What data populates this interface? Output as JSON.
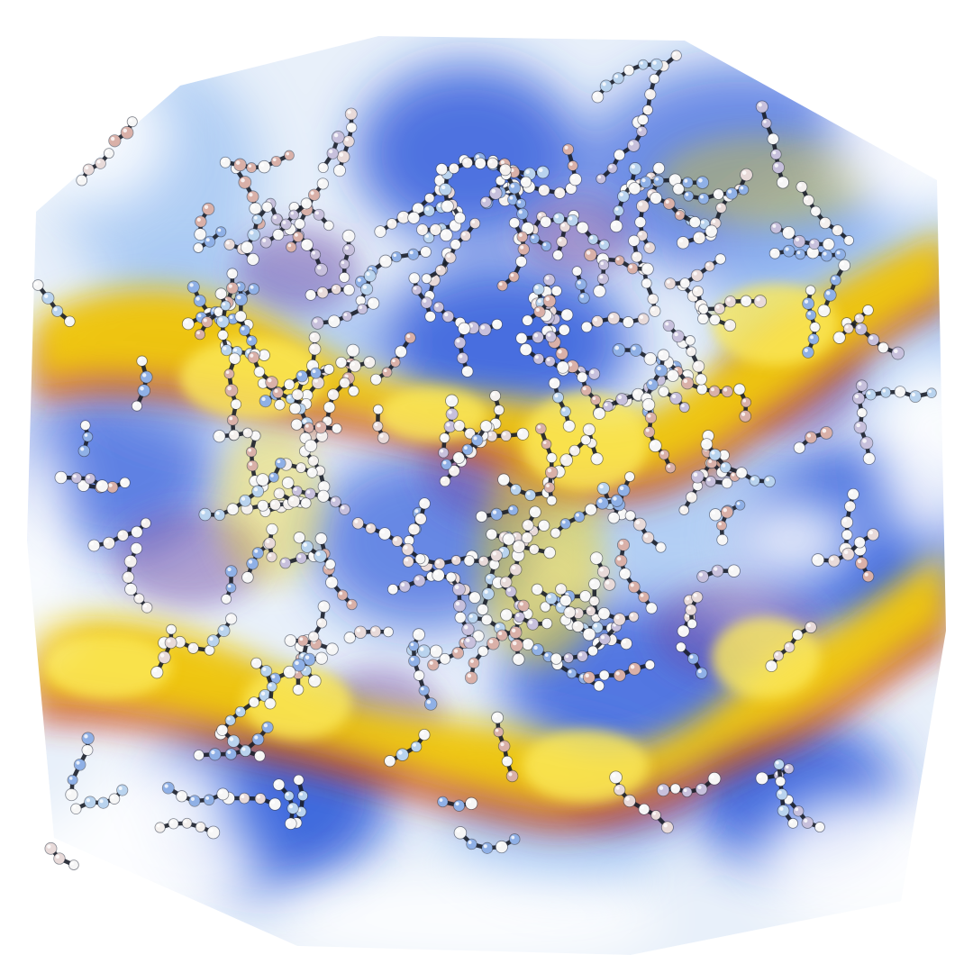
{
  "scene": {
    "subject": "molecular-simulation-volume-render",
    "background_color": "#ffffff",
    "volume_colors": {
      "blue": "#1f4fd8",
      "light_blue": "#8fb8f0",
      "purple": "#6a3fa0",
      "red": "#c8351f",
      "orange": "#e07a14",
      "yellow": "#f2d20a",
      "white_haze": "#eef4fb"
    },
    "bond_color": "#1a1f2a",
    "atom_colors": [
      "#f4f0ee",
      "#e8dad9",
      "#b9d3ee",
      "#8fb0e6",
      "#d9b0a8",
      "#c7c0dc"
    ]
  }
}
